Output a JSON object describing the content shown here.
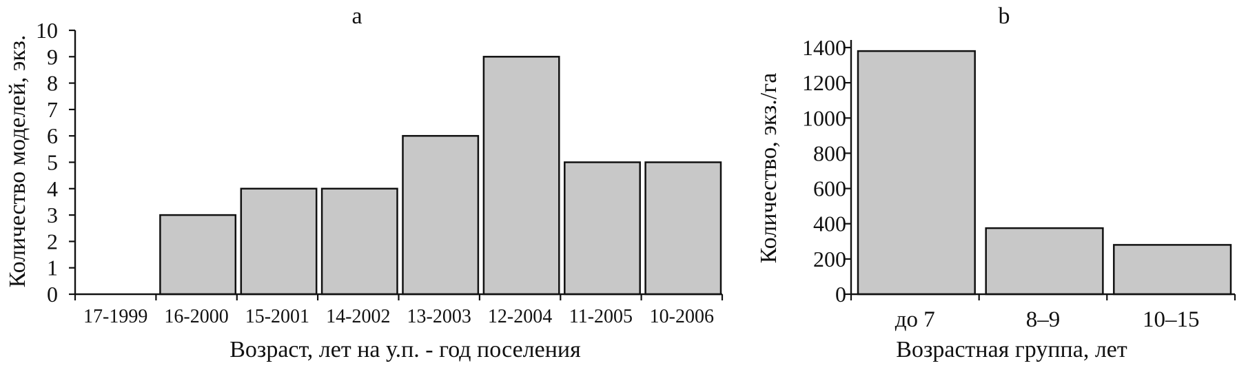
{
  "chart_data": [
    {
      "type": "bar",
      "panel_label": "a",
      "categories": [
        "17-1999",
        "16-2000",
        "15-2001",
        "14-2002",
        "13-2003",
        "12-2004",
        "11-2005",
        "10-2006"
      ],
      "values": [
        0,
        3,
        4,
        4,
        6,
        9,
        5,
        5
      ],
      "xlabel": "Возраст, лет на у.п. - год поселения",
      "ylabel": "Количество моделей, экз.",
      "ylim": [
        0,
        10
      ],
      "yticks": [
        0,
        1,
        2,
        3,
        4,
        5,
        6,
        7,
        8,
        9,
        10
      ],
      "grid": false,
      "bar_color": "#c8c8c8"
    },
    {
      "type": "bar",
      "panel_label": "b",
      "categories": [
        "до 7",
        "8–9",
        "10–15"
      ],
      "values": [
        1380,
        375,
        280
      ],
      "xlabel": "Возрастная группа, лет",
      "ylabel": "Количество, экз./га",
      "ylim": [
        0,
        1400
      ],
      "yticks": [
        0,
        200,
        400,
        600,
        800,
        1000,
        1200,
        1400
      ],
      "grid": false,
      "bar_color": "#c8c8c8"
    }
  ]
}
